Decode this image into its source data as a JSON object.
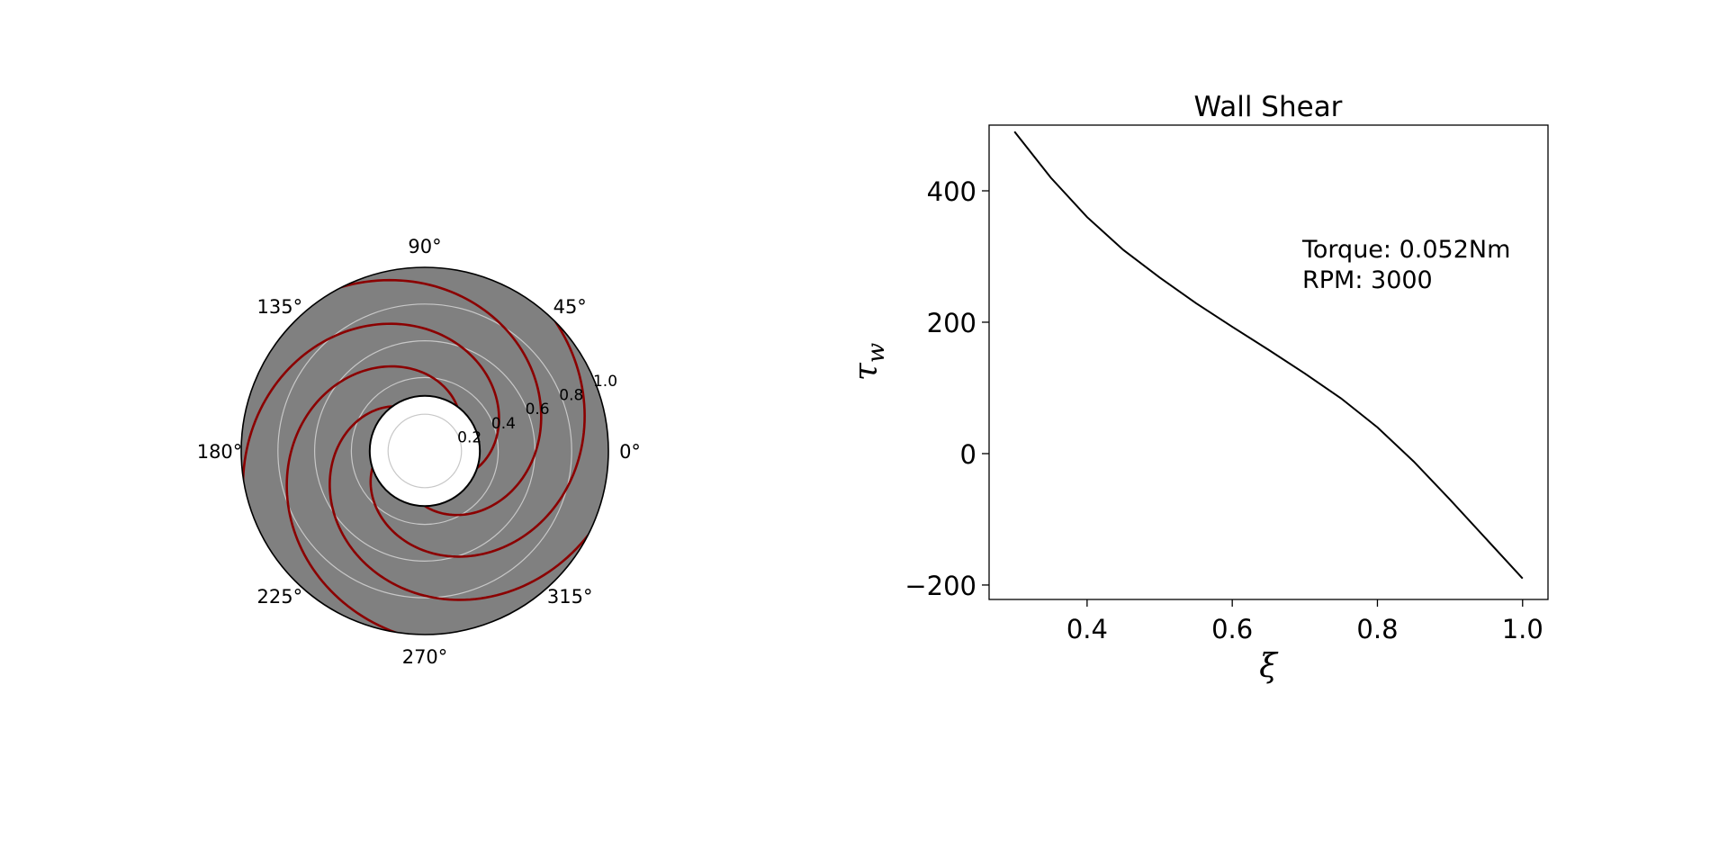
{
  "chart_data": [
    {
      "type": "polar",
      "title": "",
      "angle_ticks": [
        "0°",
        "45°",
        "90°",
        "135°",
        "180°",
        "225°",
        "270°",
        "315°"
      ],
      "radial_ticks": [
        "0.2",
        "0.4",
        "0.6",
        "0.8",
        "1.0"
      ],
      "radial_tick_values": [
        0.2,
        0.4,
        0.6,
        0.8,
        1.0
      ],
      "rlim": [
        0,
        1.0
      ],
      "inner_radius": 0.3,
      "outer_radius": 1.0,
      "grid": true,
      "disc_color": "#808080",
      "grid_color": "#c8c8c8",
      "spiral_color": "#8b0000",
      "spiral_count": 5,
      "spiral_start_angles_deg": [
        -90,
        -18,
        54,
        126,
        198
      ],
      "spiral_sweep_deg": 230
    },
    {
      "type": "line",
      "title": "Wall Shear",
      "xlabel": "ξ",
      "ylabel": "τ",
      "ylabel_subscript": "w",
      "xlim": [
        0.265,
        1.035
      ],
      "ylim": [
        -222,
        500
      ],
      "xticks": [
        0.4,
        0.6,
        0.8,
        1.0
      ],
      "xtick_labels": [
        "0.4",
        "0.6",
        "0.8",
        "1.0"
      ],
      "yticks": [
        -200,
        0,
        200,
        400
      ],
      "ytick_labels": [
        "−200",
        "0",
        "200",
        "400"
      ],
      "grid": false,
      "line_color": "#000000",
      "series": [
        {
          "x": [
            0.3,
            0.35,
            0.4,
            0.45,
            0.5,
            0.55,
            0.6,
            0.65,
            0.7,
            0.75,
            0.8,
            0.85,
            0.9,
            0.95,
            1.0
          ],
          "y": [
            490,
            420,
            360,
            310,
            268,
            229,
            193,
            158,
            122,
            84,
            40,
            -12,
            -70,
            -130,
            -190
          ]
        }
      ],
      "annotations": [
        "Torque: 0.052Nm",
        "RPM: 3000"
      ]
    }
  ]
}
